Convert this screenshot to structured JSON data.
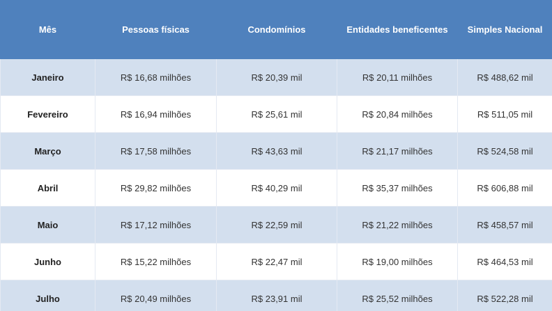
{
  "table": {
    "headers": [
      "Mês",
      "Pessoas físicas",
      "Condomínios",
      "Entidades beneficentes",
      "Simples Nacional"
    ],
    "rows": [
      [
        "Janeiro",
        "R$ 16,68 milhões",
        "R$ 20,39 mil",
        "R$ 20,11 milhões",
        "R$ 488,62 mil"
      ],
      [
        "Fevereiro",
        "R$ 16,94 milhões",
        "R$ 25,61 mil",
        "R$ 20,84 milhões",
        "R$ 511,05 mil"
      ],
      [
        "Março",
        "R$ 17,58 milhões",
        "R$ 43,63 mil",
        "R$ 21,17 milhões",
        "R$ 524,58 mil"
      ],
      [
        "Abril",
        "R$ 29,82 milhões",
        "R$ 40,29 mil",
        "R$ 35,37 milhões",
        "R$ 606,88 mil"
      ],
      [
        "Maio",
        "R$ 17,12 milhões",
        "R$ 22,59 mil",
        "R$ 21,22 milhões",
        "R$ 458,57 mil"
      ],
      [
        "Junho",
        "R$ 15,22 milhões",
        "R$ 22,47 mil",
        "R$ 19,00 milhões",
        "R$ 464,53 mil"
      ],
      [
        "Julho",
        "R$ 20,49 milhões",
        "R$ 23,91 mil",
        "R$ 25,52 milhões",
        "R$ 522,28 mil"
      ]
    ]
  },
  "colors": {
    "header_bg": "#4f81bd",
    "header_text": "#ffffff",
    "row_alt_bg": "#d3dfee",
    "row_plain_bg": "#ffffff"
  }
}
